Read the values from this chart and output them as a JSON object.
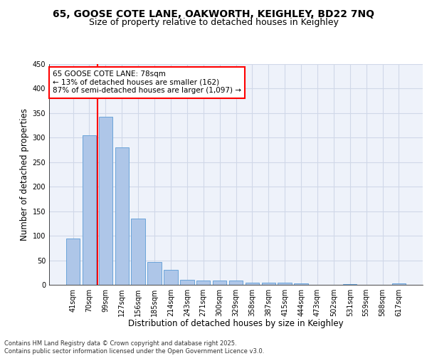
{
  "title_line1": "65, GOOSE COTE LANE, OAKWORTH, KEIGHLEY, BD22 7NQ",
  "title_line2": "Size of property relative to detached houses in Keighley",
  "xlabel": "Distribution of detached houses by size in Keighley",
  "ylabel": "Number of detached properties",
  "categories": [
    "41sqm",
    "70sqm",
    "99sqm",
    "127sqm",
    "156sqm",
    "185sqm",
    "214sqm",
    "243sqm",
    "271sqm",
    "300sqm",
    "329sqm",
    "358sqm",
    "387sqm",
    "415sqm",
    "444sqm",
    "473sqm",
    "502sqm",
    "531sqm",
    "559sqm",
    "588sqm",
    "617sqm"
  ],
  "values": [
    94,
    305,
    343,
    280,
    135,
    46,
    30,
    10,
    9,
    8,
    8,
    4,
    4,
    4,
    3,
    0,
    0,
    1,
    0,
    0,
    3
  ],
  "bar_color": "#aec6e8",
  "bar_edge_color": "#5b9bd5",
  "grid_color": "#d0d8e8",
  "background_color": "#eef2fa",
  "vline_x": 1.5,
  "vline_color": "red",
  "annotation_text": "65 GOOSE COTE LANE: 78sqm\n← 13% of detached houses are smaller (162)\n87% of semi-detached houses are larger (1,097) →",
  "annotation_box_color": "white",
  "annotation_box_edge": "red",
  "ylim": [
    0,
    450
  ],
  "yticks": [
    0,
    50,
    100,
    150,
    200,
    250,
    300,
    350,
    400,
    450
  ],
  "footer_text": "Contains HM Land Registry data © Crown copyright and database right 2025.\nContains public sector information licensed under the Open Government Licence v3.0.",
  "title_fontsize": 10,
  "subtitle_fontsize": 9,
  "axis_label_fontsize": 8.5,
  "tick_fontsize": 7,
  "annotation_fontsize": 7.5,
  "footer_fontsize": 6
}
